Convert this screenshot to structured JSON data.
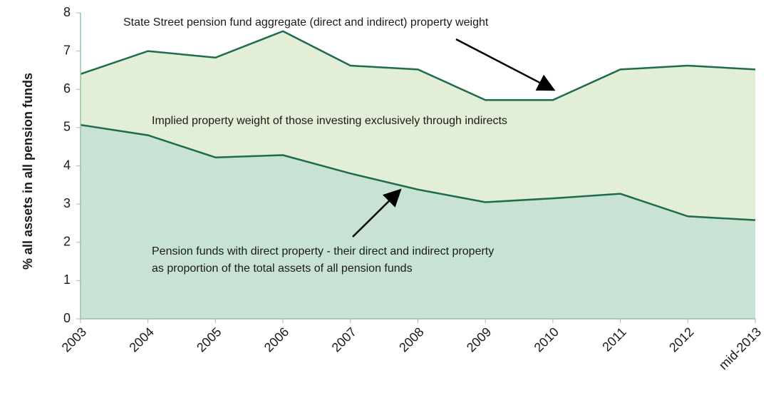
{
  "chart_data": {
    "type": "area",
    "y_label": "% all assets in all pension funds",
    "categories": [
      "2003",
      "2004",
      "2005",
      "2006",
      "2007",
      "2008",
      "2009",
      "2010",
      "2011",
      "2012",
      "mid-2013"
    ],
    "series": [
      {
        "name": "State Street pension fund  aggregate (direct and indirect) property weight",
        "color": "#1e6b4e",
        "fill": "#e2eed5",
        "values": [
          6.4,
          7.0,
          6.83,
          7.52,
          6.62,
          6.52,
          5.72,
          5.72,
          6.52,
          6.62,
          6.52
        ]
      },
      {
        "name": "Pension funds with direct property - their direct and indirect property",
        "color": "#1e6b4e",
        "fill": "#c8e3d4",
        "values": [
          5.07,
          4.8,
          4.22,
          4.28,
          3.8,
          3.38,
          3.05,
          3.15,
          3.27,
          2.68,
          2.58
        ]
      }
    ],
    "annotations": [
      "Implied property weight of those investing exclusively through indirects",
      "as proportion of the total assets of all pension funds"
    ],
    "ylim": [
      0,
      8
    ],
    "yticks": [
      0,
      1,
      2,
      3,
      4,
      5,
      6,
      7,
      8
    ]
  }
}
